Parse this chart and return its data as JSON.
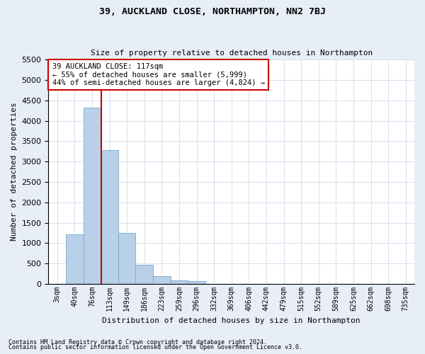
{
  "title": "39, AUCKLAND CLOSE, NORTHAMPTON, NN2 7BJ",
  "subtitle": "Size of property relative to detached houses in Northampton",
  "xlabel": "Distribution of detached houses by size in Northampton",
  "ylabel": "Number of detached properties",
  "footer_line1": "Contains HM Land Registry data © Crown copyright and database right 2024.",
  "footer_line2": "Contains public sector information licensed under the Open Government Licence v3.0.",
  "categories": [
    "3sqm",
    "40sqm",
    "76sqm",
    "113sqm",
    "149sqm",
    "186sqm",
    "223sqm",
    "259sqm",
    "296sqm",
    "332sqm",
    "369sqm",
    "406sqm",
    "442sqm",
    "479sqm",
    "515sqm",
    "552sqm",
    "589sqm",
    "625sqm",
    "662sqm",
    "698sqm",
    "735sqm"
  ],
  "values": [
    0,
    1220,
    4330,
    3280,
    1250,
    470,
    195,
    95,
    65,
    0,
    0,
    0,
    0,
    0,
    0,
    0,
    0,
    0,
    0,
    0,
    0
  ],
  "bar_color": "#b8d0e8",
  "bar_edge_color": "#7aaac8",
  "vline_color": "#cc0000",
  "vline_x_index": 2.53,
  "ylim_max": 5500,
  "ytick_step": 500,
  "annotation_text_line1": "39 AUCKLAND CLOSE: 117sqm",
  "annotation_text_line2": "← 55% of detached houses are smaller (5,999)",
  "annotation_text_line3": "44% of semi-detached houses are larger (4,824) →",
  "annotation_box_edgecolor": "#cc0000",
  "annotation_box_facecolor": "#ffffff",
  "bg_color": "#e8eef8",
  "plot_bg_color": "#ffffff",
  "grid_color": "#c8d4e8",
  "title_fontsize": 9.5,
  "subtitle_fontsize": 8,
  "ylabel_fontsize": 8,
  "xlabel_fontsize": 8,
  "xtick_fontsize": 7,
  "ytick_fontsize": 8,
  "annotation_fontsize": 7.5,
  "footer_fontsize": 6
}
